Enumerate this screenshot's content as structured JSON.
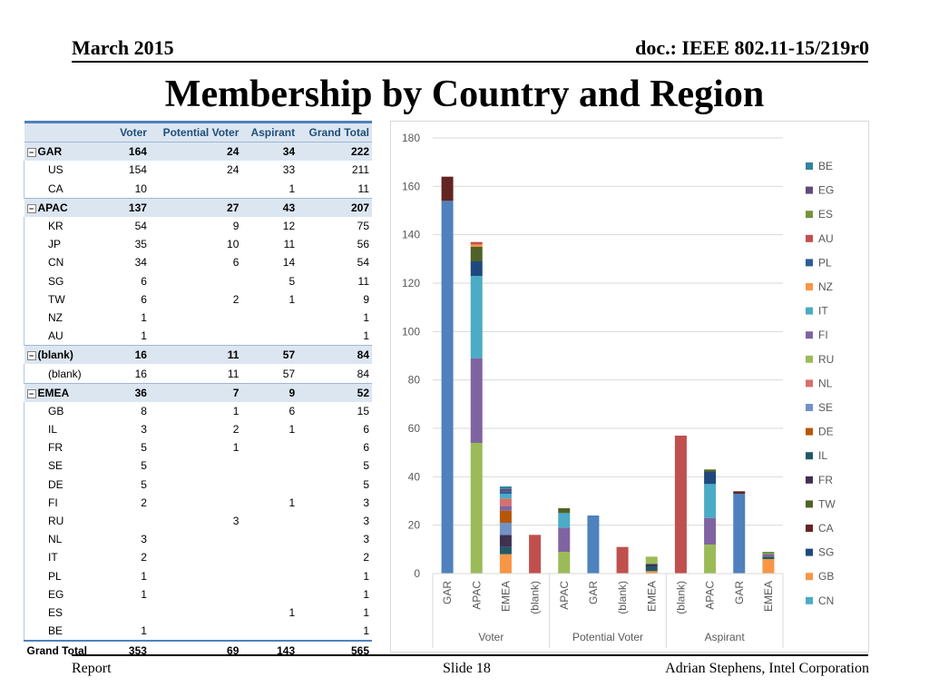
{
  "header": {
    "left": "March 2015",
    "right": "doc.: IEEE 802.11-15/219r0"
  },
  "title": "Membership by Country and Region",
  "footer": {
    "left": "Report",
    "center": "Slide 18",
    "right": "Adrian Stephens, Intel Corporation"
  },
  "table": {
    "headers": [
      "Voter",
      "Potential Voter",
      "Aspirant",
      "Grand Total"
    ],
    "rows": [
      {
        "type": "group",
        "label": "GAR",
        "v": "164",
        "pv": "24",
        "a": "34",
        "gt": "222"
      },
      {
        "type": "detail",
        "label": "US",
        "v": "154",
        "pv": "24",
        "a": "33",
        "gt": "211"
      },
      {
        "type": "detail",
        "label": "CA",
        "v": "10",
        "pv": "",
        "a": "1",
        "gt": "11"
      },
      {
        "type": "group",
        "label": "APAC",
        "v": "137",
        "pv": "27",
        "a": "43",
        "gt": "207"
      },
      {
        "type": "detail",
        "label": "KR",
        "v": "54",
        "pv": "9",
        "a": "12",
        "gt": "75"
      },
      {
        "type": "detail",
        "label": "JP",
        "v": "35",
        "pv": "10",
        "a": "11",
        "gt": "56"
      },
      {
        "type": "detail",
        "label": "CN",
        "v": "34",
        "pv": "6",
        "a": "14",
        "gt": "54"
      },
      {
        "type": "detail",
        "label": "SG",
        "v": "6",
        "pv": "",
        "a": "5",
        "gt": "11"
      },
      {
        "type": "detail",
        "label": "TW",
        "v": "6",
        "pv": "2",
        "a": "1",
        "gt": "9"
      },
      {
        "type": "detail",
        "label": "NZ",
        "v": "1",
        "pv": "",
        "a": "",
        "gt": "1"
      },
      {
        "type": "detail",
        "label": "AU",
        "v": "1",
        "pv": "",
        "a": "",
        "gt": "1"
      },
      {
        "type": "group",
        "label": "(blank)",
        "v": "16",
        "pv": "11",
        "a": "57",
        "gt": "84"
      },
      {
        "type": "detail",
        "label": "(blank)",
        "v": "16",
        "pv": "11",
        "a": "57",
        "gt": "84"
      },
      {
        "type": "group",
        "label": "EMEA",
        "v": "36",
        "pv": "7",
        "a": "9",
        "gt": "52"
      },
      {
        "type": "detail",
        "label": "GB",
        "v": "8",
        "pv": "1",
        "a": "6",
        "gt": "15"
      },
      {
        "type": "detail",
        "label": "IL",
        "v": "3",
        "pv": "2",
        "a": "1",
        "gt": "6"
      },
      {
        "type": "detail",
        "label": "FR",
        "v": "5",
        "pv": "1",
        "a": "",
        "gt": "6"
      },
      {
        "type": "detail",
        "label": "SE",
        "v": "5",
        "pv": "",
        "a": "",
        "gt": "5"
      },
      {
        "type": "detail",
        "label": "DE",
        "v": "5",
        "pv": "",
        "a": "",
        "gt": "5"
      },
      {
        "type": "detail",
        "label": "FI",
        "v": "2",
        "pv": "",
        "a": "1",
        "gt": "3"
      },
      {
        "type": "detail",
        "label": "RU",
        "v": "",
        "pv": "3",
        "a": "",
        "gt": "3"
      },
      {
        "type": "detail",
        "label": "NL",
        "v": "3",
        "pv": "",
        "a": "",
        "gt": "3"
      },
      {
        "type": "detail",
        "label": "IT",
        "v": "2",
        "pv": "",
        "a": "",
        "gt": "2"
      },
      {
        "type": "detail",
        "label": "PL",
        "v": "1",
        "pv": "",
        "a": "",
        "gt": "1"
      },
      {
        "type": "detail",
        "label": "EG",
        "v": "1",
        "pv": "",
        "a": "",
        "gt": "1"
      },
      {
        "type": "detail",
        "label": "ES",
        "v": "",
        "pv": "",
        "a": "1",
        "gt": "1"
      },
      {
        "type": "detail",
        "label": "BE",
        "v": "1",
        "pv": "",
        "a": "",
        "gt": "1"
      }
    ],
    "total": {
      "label": "Grand Total",
      "v": "353",
      "pv": "69",
      "a": "143",
      "gt": "565"
    }
  },
  "chart_data": {
    "type": "bar",
    "stacked": true,
    "ylim": [
      0,
      180
    ],
    "yticks": [
      0,
      20,
      40,
      60,
      80,
      100,
      120,
      140,
      160,
      180
    ],
    "grid": true,
    "legend_position": "right",
    "groups": [
      {
        "name": "Voter",
        "categories": [
          "GAR",
          "APAC",
          "EMEA",
          "(blank)"
        ]
      },
      {
        "name": "Potential Voter",
        "categories": [
          "APAC",
          "GAR",
          "(blank)",
          "EMEA"
        ]
      },
      {
        "name": "Aspirant",
        "categories": [
          "(blank)",
          "APAC",
          "GAR",
          "EMEA"
        ]
      }
    ],
    "series_order": [
      "US",
      "KR",
      "JP",
      "CN",
      "SG",
      "TW",
      "NZ",
      "AU",
      "CA",
      "(blank)",
      "GB",
      "IL",
      "FR",
      "SE",
      "DE",
      "FI",
      "RU",
      "NL",
      "IT",
      "PL",
      "EG",
      "ES",
      "BE"
    ],
    "colors": {
      "US": "#4f81bd",
      "KR": "#9bbb59",
      "JP": "#8064a2",
      "CN": "#4bacc6",
      "SG": "#1f497d",
      "TW": "#4f6228",
      "NZ": "#f79646",
      "AU": "#c0504d",
      "CA": "#632523",
      "(blank)": "#c0504d",
      "GB": "#f79646",
      "IL": "#215968",
      "FR": "#3f3151",
      "SE": "#7292c5",
      "DE": "#b65708",
      "FI": "#8064a2",
      "RU": "#9bbb59",
      "NL": "#d6706c",
      "IT": "#4bacc6",
      "PL": "#2c5c96",
      "EG": "#604a7b",
      "ES": "#77933c",
      "BE": "#31859c"
    },
    "stacks": [
      {
        "group": 0,
        "category": "GAR",
        "segments": {
          "US": 154,
          "CA": 10
        }
      },
      {
        "group": 0,
        "category": "APAC",
        "segments": {
          "KR": 54,
          "JP": 35,
          "CN": 34,
          "SG": 6,
          "TW": 6,
          "NZ": 1,
          "AU": 1
        }
      },
      {
        "group": 0,
        "category": "EMEA",
        "segments": {
          "GB": 8,
          "IL": 3,
          "FR": 5,
          "SE": 5,
          "DE": 5,
          "FI": 2,
          "NL": 3,
          "IT": 2,
          "PL": 1,
          "EG": 1,
          "BE": 1
        }
      },
      {
        "group": 0,
        "category": "(blank)",
        "segments": {
          "(blank)": 16
        }
      },
      {
        "group": 1,
        "category": "APAC",
        "segments": {
          "KR": 9,
          "JP": 10,
          "CN": 6,
          "TW": 2
        }
      },
      {
        "group": 1,
        "category": "GAR",
        "segments": {
          "US": 24
        }
      },
      {
        "group": 1,
        "category": "(blank)",
        "segments": {
          "(blank)": 11
        }
      },
      {
        "group": 1,
        "category": "EMEA",
        "segments": {
          "GB": 1,
          "IL": 2,
          "FR": 1,
          "RU": 3
        }
      },
      {
        "group": 2,
        "category": "(blank)",
        "segments": {
          "(blank)": 57
        }
      },
      {
        "group": 2,
        "category": "APAC",
        "segments": {
          "KR": 12,
          "JP": 11,
          "CN": 14,
          "SG": 5,
          "TW": 1
        }
      },
      {
        "group": 2,
        "category": "GAR",
        "segments": {
          "US": 33,
          "CA": 1
        }
      },
      {
        "group": 2,
        "category": "EMEA",
        "segments": {
          "GB": 6,
          "IL": 1,
          "FI": 1,
          "ES": 1
        }
      }
    ],
    "legend": [
      "BE",
      "EG",
      "ES",
      "AU",
      "PL",
      "NZ",
      "IT",
      "FI",
      "RU",
      "NL",
      "SE",
      "DE",
      "IL",
      "FR",
      "TW",
      "CA",
      "SG",
      "GB",
      "CN"
    ]
  }
}
